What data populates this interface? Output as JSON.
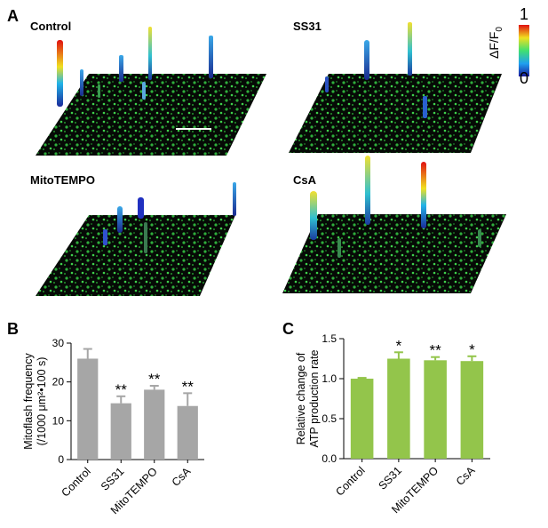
{
  "panel_a": {
    "letter": "A",
    "images": [
      {
        "title": "Control"
      },
      {
        "title": "SS31"
      },
      {
        "title": "MitoTEMPO"
      },
      {
        "title": "CsA"
      }
    ],
    "colorbar": {
      "max_label": "1",
      "min_label": "0",
      "label": "ΔF/F",
      "label_sub": "0"
    }
  },
  "chart_data": [
    {
      "panel": "B",
      "type": "bar",
      "categories": [
        "Control",
        "SS31",
        "MitoTEMPO",
        "CsA"
      ],
      "values": [
        26,
        14.5,
        18,
        13.8
      ],
      "errors": [
        2.5,
        1.8,
        1.0,
        3.3
      ],
      "significance": [
        "",
        "**",
        "**",
        "**"
      ],
      "ylabel_lines": [
        "Mitoflash frequency",
        "(/1000 μm²•100 s)"
      ],
      "ylim": [
        0,
        30
      ],
      "yticks": [
        "0",
        "10",
        "20",
        "30"
      ],
      "bar_color": "#a6a6a6"
    },
    {
      "panel": "C",
      "type": "bar",
      "categories": [
        "Control",
        "SS31",
        "MitoTEMPO",
        "CsA"
      ],
      "values": [
        1.0,
        1.25,
        1.23,
        1.22
      ],
      "errors": [
        0.01,
        0.08,
        0.04,
        0.06
      ],
      "significance": [
        "",
        "*",
        "**",
        "*"
      ],
      "ylabel_lines": [
        "Relative change of",
        "ATP production rate"
      ],
      "ylim": [
        0,
        1.5
      ],
      "yticks": [
        "0.0",
        "0.5",
        "1.0",
        "1.5"
      ],
      "bar_color": "#93c54b"
    }
  ]
}
